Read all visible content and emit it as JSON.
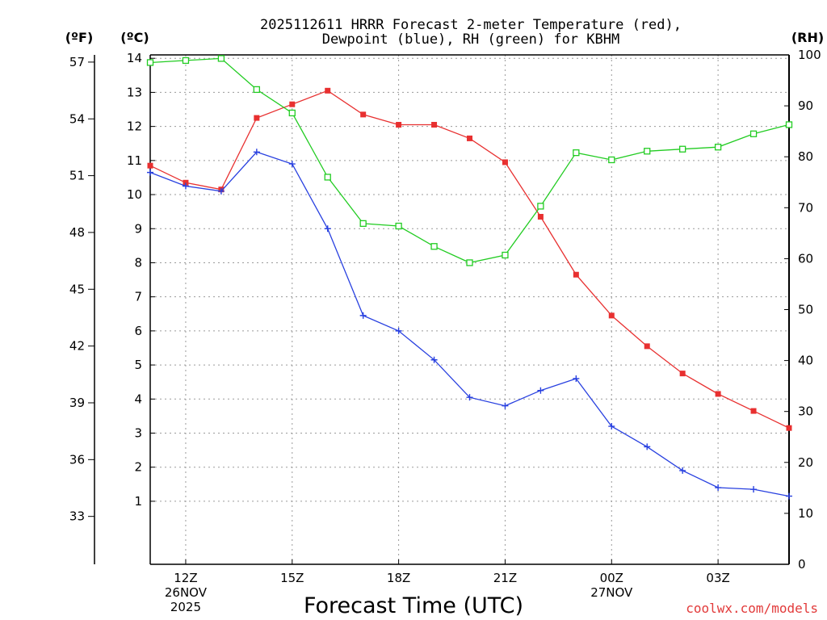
{
  "chart_data": {
    "type": "line",
    "title_lines": [
      "2025112611 HRRR Forecast 2-meter Temperature (red),",
      "Dewpoint (blue), RH (green) for KBHM"
    ],
    "xlabel": "Forecast Time (UTC)",
    "credit": "coolwx.com/models",
    "units": {
      "fahrenheit": "(ºF)",
      "celsius": "(ºC)",
      "rh": "(RH)"
    },
    "x_hours_after_11z": [
      0,
      1,
      2,
      3,
      4,
      5,
      6,
      7,
      8,
      9,
      10,
      11,
      12,
      13,
      14,
      15,
      16,
      17,
      18
    ],
    "xlim": [
      0,
      18
    ],
    "x_ticks": [
      {
        "x": 1,
        "lines": [
          "12Z",
          "26NOV",
          "2025"
        ]
      },
      {
        "x": 4,
        "lines": [
          "15Z"
        ]
      },
      {
        "x": 7,
        "lines": [
          "18Z"
        ]
      },
      {
        "x": 10,
        "lines": [
          "21Z"
        ]
      },
      {
        "x": 13,
        "lines": [
          "00Z",
          "27NOV"
        ]
      },
      {
        "x": 16,
        "lines": [
          "03Z"
        ]
      }
    ],
    "celsius_axis": {
      "ylim": [
        -0.85,
        14.1
      ],
      "ticks": [
        "1",
        "2",
        "3",
        "4",
        "5",
        "6",
        "7",
        "8",
        "9",
        "10",
        "11",
        "12",
        "13",
        "14"
      ]
    },
    "fahrenheit_axis": {
      "ticks": [
        "33",
        "36",
        "39",
        "42",
        "45",
        "48",
        "51",
        "54",
        "57"
      ]
    },
    "rh_axis": {
      "ylim": [
        0,
        100
      ],
      "ticks": [
        "0",
        "10",
        "20",
        "30",
        "40",
        "50",
        "60",
        "70",
        "80",
        "90",
        "100"
      ]
    },
    "series": [
      {
        "name": "Temperature",
        "unit": "C",
        "color": "#e83030",
        "marker": "filled-square",
        "values": [
          10.85,
          10.35,
          10.15,
          12.25,
          12.65,
          13.05,
          12.35,
          12.05,
          12.05,
          11.65,
          10.95,
          9.35,
          7.65,
          6.45,
          5.55,
          4.75,
          4.15,
          3.65,
          3.15
        ]
      },
      {
        "name": "Dewpoint",
        "unit": "C",
        "color": "#2840e0",
        "marker": "plus",
        "values": [
          10.65,
          10.25,
          10.1,
          11.25,
          10.9,
          9.0,
          6.45,
          6.0,
          5.15,
          4.05,
          3.8,
          4.25,
          4.6,
          3.2,
          2.6,
          1.9,
          1.4,
          1.35,
          1.15
        ]
      },
      {
        "name": "RH",
        "unit": "%",
        "color": "#22cc22",
        "marker": "open-square",
        "values": [
          98.5,
          98.9,
          99.3,
          93.2,
          88.6,
          76.0,
          66.9,
          66.4,
          62.4,
          59.2,
          60.7,
          70.3,
          80.8,
          79.4,
          81.1,
          81.5,
          81.9,
          84.5,
          86.3
        ]
      }
    ]
  }
}
